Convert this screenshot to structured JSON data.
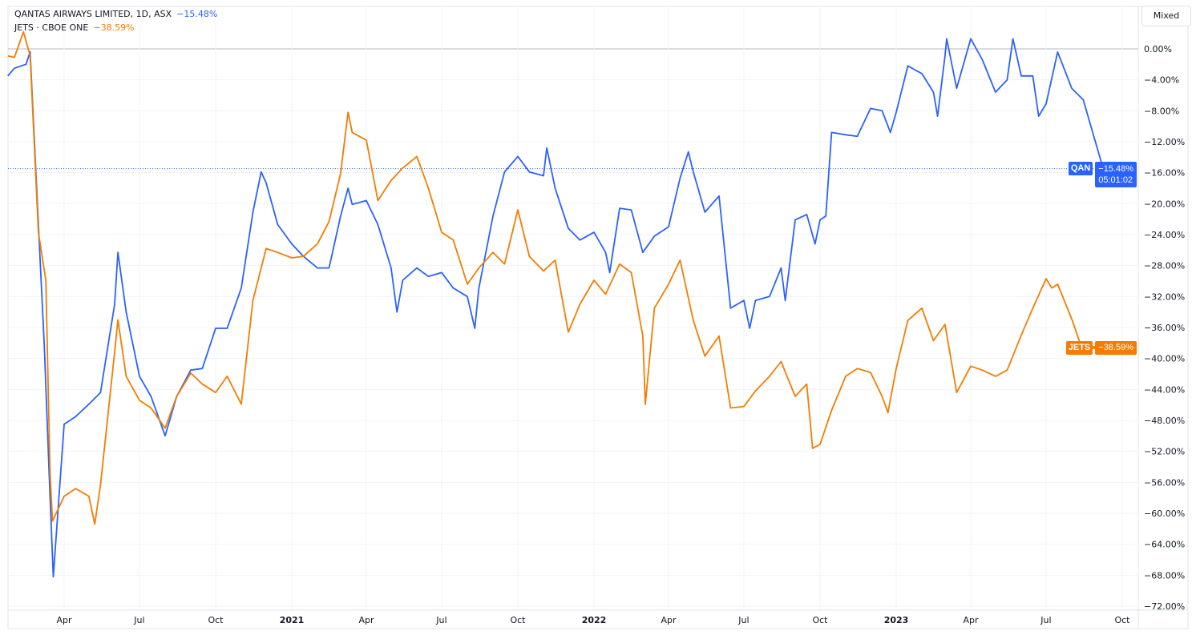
{
  "legend": {
    "series1_title": "QANTAS AIRWAYS LIMITED, 1D, ASX",
    "series1_value": "−15.48%",
    "series2_title": "JETS · CBOE ONE",
    "series2_value": "−38.59%"
  },
  "scale_button": "Mixed",
  "price_tags": {
    "qan_symbol": "QAN",
    "qan_value": "−15.48%",
    "qan_countdown": "05:01:02",
    "jets_symbol": "JETS",
    "jets_value": "−38.59%"
  },
  "colors": {
    "qan": "#2962ff",
    "jets": "#f57c00",
    "grid": "#f0f3fa",
    "zero_line": "#b2b5be"
  },
  "chart_data": {
    "type": "line",
    "title": "",
    "xlabel": "",
    "ylabel": "",
    "x_type": "date",
    "xlim": [
      "2020-01-24",
      "2023-10-20"
    ],
    "ylim": [
      -73,
      1.5
    ],
    "y_ticks": [
      0,
      -4,
      -8,
      -12,
      -16,
      -20,
      -24,
      -28,
      -32,
      -36,
      -40,
      -44,
      -48,
      -52,
      -56,
      -60,
      -64,
      -68,
      -72
    ],
    "y_tick_format": "percent",
    "y_tick_labels": [
      "0.00%",
      "−4.00%",
      "−8.00%",
      "−12.00%",
      "−16.00%",
      "−20.00%",
      "−24.00%",
      "−28.00%",
      "−32.00%",
      "−36.00%",
      "−40.00%",
      "−44.00%",
      "−48.00%",
      "−52.00%",
      "−56.00%",
      "−60.00%",
      "−64.00%",
      "−68.00%",
      "−72.00%"
    ],
    "x_ticks": [
      {
        "date": "2020-04-01",
        "label": "Apr"
      },
      {
        "date": "2020-07-01",
        "label": "Jul"
      },
      {
        "date": "2020-10-01",
        "label": "Oct"
      },
      {
        "date": "2021-01-01",
        "label": "2021",
        "major": true
      },
      {
        "date": "2021-04-01",
        "label": "Apr"
      },
      {
        "date": "2021-07-01",
        "label": "Jul"
      },
      {
        "date": "2021-10-01",
        "label": "Oct"
      },
      {
        "date": "2022-01-01",
        "label": "2022",
        "major": true
      },
      {
        "date": "2022-04-01",
        "label": "Apr"
      },
      {
        "date": "2022-07-01",
        "label": "Jul"
      },
      {
        "date": "2022-10-01",
        "label": "Oct"
      },
      {
        "date": "2023-01-01",
        "label": "2023",
        "major": true
      },
      {
        "date": "2023-04-01",
        "label": "Apr"
      },
      {
        "date": "2023-07-01",
        "label": "Jul"
      },
      {
        "date": "2023-10-01",
        "label": "Oct"
      }
    ],
    "grid": true,
    "legend_position": "top-left",
    "series": [
      {
        "name": "QAN",
        "color": "#2962ff",
        "last_value": -15.48,
        "x": [
          "2020-01-24",
          "2020-02-01",
          "2020-02-15",
          "2020-02-20",
          "2020-03-01",
          "2020-03-08",
          "2020-03-15",
          "2020-03-19",
          "2020-04-01",
          "2020-04-15",
          "2020-05-01",
          "2020-05-15",
          "2020-06-01",
          "2020-06-05",
          "2020-06-15",
          "2020-07-01",
          "2020-07-15",
          "2020-08-01",
          "2020-08-15",
          "2020-09-01",
          "2020-09-15",
          "2020-10-01",
          "2020-10-15",
          "2020-11-01",
          "2020-11-15",
          "2020-11-25",
          "2020-12-01",
          "2020-12-15",
          "2021-01-01",
          "2021-01-15",
          "2021-02-01",
          "2021-02-15",
          "2021-03-01",
          "2021-03-10",
          "2021-03-15",
          "2021-04-01",
          "2021-04-15",
          "2021-05-01",
          "2021-05-08",
          "2021-05-15",
          "2021-06-01",
          "2021-06-15",
          "2021-07-01",
          "2021-07-15",
          "2021-08-01",
          "2021-08-10",
          "2021-08-15",
          "2021-09-01",
          "2021-09-15",
          "2021-10-01",
          "2021-10-15",
          "2021-11-01",
          "2021-11-05",
          "2021-11-15",
          "2021-12-01",
          "2021-12-15",
          "2022-01-01",
          "2022-01-15",
          "2022-01-20",
          "2022-02-01",
          "2022-02-15",
          "2022-03-01",
          "2022-03-15",
          "2022-04-01",
          "2022-04-15",
          "2022-04-25",
          "2022-05-01",
          "2022-05-15",
          "2022-06-01",
          "2022-06-15",
          "2022-07-01",
          "2022-07-08",
          "2022-07-15",
          "2022-08-01",
          "2022-08-15",
          "2022-08-20",
          "2022-09-01",
          "2022-09-15",
          "2022-09-25",
          "2022-10-01",
          "2022-10-08",
          "2022-10-15",
          "2022-11-01",
          "2022-11-15",
          "2022-12-01",
          "2022-12-15",
          "2022-12-25",
          "2023-01-01",
          "2023-01-15",
          "2023-02-01",
          "2023-02-15",
          "2023-02-20",
          "2023-03-01",
          "2023-03-03",
          "2023-03-15",
          "2023-04-01",
          "2023-04-15",
          "2023-05-01",
          "2023-05-15",
          "2023-05-22",
          "2023-06-01",
          "2023-06-15",
          "2023-06-22",
          "2023-07-01",
          "2023-07-15",
          "2023-08-01",
          "2023-08-15",
          "2023-09-08"
        ],
        "y": [
          -3.5,
          -2.5,
          -2.0,
          -0.4,
          -22.7,
          -38.2,
          -57.8,
          -68.2,
          -48.5,
          -47.5,
          -45.9,
          -44.4,
          -33.0,
          -26.3,
          -34.0,
          -42.3,
          -44.9,
          -50.0,
          -44.9,
          -41.5,
          -41.3,
          -36.1,
          -36.1,
          -30.9,
          -21.1,
          -15.9,
          -17.3,
          -22.7,
          -25.2,
          -26.8,
          -28.3,
          -28.3,
          -21.6,
          -18.0,
          -20.1,
          -19.6,
          -22.7,
          -28.3,
          -34.0,
          -29.9,
          -28.3,
          -29.4,
          -28.9,
          -30.9,
          -32.0,
          -36.1,
          -30.9,
          -21.6,
          -15.9,
          -13.9,
          -15.9,
          -16.4,
          -12.8,
          -18.0,
          -23.2,
          -24.7,
          -23.7,
          -26.3,
          -28.9,
          -20.6,
          -20.8,
          -26.3,
          -24.2,
          -23.0,
          -16.7,
          -13.3,
          -15.9,
          -21.1,
          -19.0,
          -33.5,
          -32.5,
          -36.1,
          -32.5,
          -32.0,
          -28.3,
          -32.5,
          -22.1,
          -21.4,
          -25.2,
          -22.1,
          -21.6,
          -10.8,
          -11.1,
          -11.3,
          -7.7,
          -8.0,
          -10.8,
          -8.2,
          -2.2,
          -3.2,
          -5.6,
          -8.7,
          -0.9,
          1.3,
          -5.1,
          1.3,
          -1.4,
          -5.6,
          -4.0,
          1.3,
          -3.5,
          -3.5,
          -8.7,
          -7.1,
          -0.4,
          -5.1,
          -6.6,
          -15.48
        ]
      },
      {
        "name": "JETS",
        "color": "#f57c00",
        "last_value": -38.59,
        "x": [
          "2020-01-24",
          "2020-02-01",
          "2020-02-12",
          "2020-02-20",
          "2020-03-01",
          "2020-03-10",
          "2020-03-15",
          "2020-03-18",
          "2020-04-01",
          "2020-04-15",
          "2020-05-01",
          "2020-05-08",
          "2020-05-15",
          "2020-06-01",
          "2020-06-05",
          "2020-06-15",
          "2020-07-01",
          "2020-07-15",
          "2020-08-01",
          "2020-08-15",
          "2020-09-01",
          "2020-09-15",
          "2020-10-01",
          "2020-10-15",
          "2020-11-01",
          "2020-11-15",
          "2020-12-01",
          "2020-12-15",
          "2021-01-01",
          "2021-01-15",
          "2021-02-01",
          "2021-02-15",
          "2021-03-01",
          "2021-03-10",
          "2021-03-15",
          "2021-04-01",
          "2021-04-15",
          "2021-05-01",
          "2021-05-15",
          "2021-06-01",
          "2021-06-15",
          "2021-07-01",
          "2021-07-15",
          "2021-08-01",
          "2021-08-15",
          "2021-09-01",
          "2021-09-15",
          "2021-10-01",
          "2021-10-15",
          "2021-11-01",
          "2021-11-15",
          "2021-12-01",
          "2021-12-15",
          "2022-01-01",
          "2022-01-15",
          "2022-02-01",
          "2022-02-15",
          "2022-03-01",
          "2022-03-04",
          "2022-03-15",
          "2022-04-01",
          "2022-04-15",
          "2022-05-01",
          "2022-05-15",
          "2022-06-01",
          "2022-06-15",
          "2022-07-01",
          "2022-07-15",
          "2022-08-01",
          "2022-08-15",
          "2022-09-01",
          "2022-09-15",
          "2022-09-22",
          "2022-10-01",
          "2022-10-15",
          "2022-11-01",
          "2022-11-15",
          "2022-12-01",
          "2022-12-15",
          "2022-12-22",
          "2023-01-01",
          "2023-01-15",
          "2023-02-01",
          "2023-02-15",
          "2023-03-01",
          "2023-03-15",
          "2023-04-01",
          "2023-04-15",
          "2023-05-01",
          "2023-05-15",
          "2023-06-01",
          "2023-06-15",
          "2023-07-01",
          "2023-07-08",
          "2023-07-15",
          "2023-08-01",
          "2023-08-15",
          "2023-08-28"
        ],
        "y": [
          -0.9,
          -1.1,
          2.2,
          -0.9,
          -23.7,
          -29.9,
          -54.7,
          -61.0,
          -57.8,
          -56.8,
          -57.8,
          -61.4,
          -56.3,
          -39.2,
          -35.0,
          -42.3,
          -45.4,
          -46.4,
          -49.0,
          -44.9,
          -41.9,
          -43.3,
          -44.4,
          -42.3,
          -45.9,
          -32.5,
          -25.8,
          -26.3,
          -27.0,
          -26.8,
          -25.2,
          -22.3,
          -16.1,
          -8.2,
          -10.8,
          -11.8,
          -19.6,
          -17.0,
          -15.4,
          -13.9,
          -18.0,
          -23.7,
          -24.7,
          -30.4,
          -28.3,
          -26.3,
          -27.8,
          -20.8,
          -26.8,
          -28.7,
          -27.3,
          -36.6,
          -33.0,
          -29.9,
          -31.7,
          -27.8,
          -28.9,
          -37.1,
          -45.9,
          -33.5,
          -30.4,
          -27.3,
          -35.1,
          -39.7,
          -37.1,
          -46.4,
          -46.2,
          -44.2,
          -42.3,
          -40.4,
          -44.9,
          -43.3,
          -51.6,
          -51.1,
          -46.7,
          -42.3,
          -41.3,
          -41.8,
          -44.9,
          -47.0,
          -41.3,
          -35.1,
          -33.5,
          -37.7,
          -35.6,
          -44.4,
          -41.0,
          -41.5,
          -42.3,
          -41.5,
          -37.0,
          -33.5,
          -29.7,
          -30.9,
          -30.4,
          -34.9,
          -39.2,
          -38.59
        ]
      }
    ]
  }
}
